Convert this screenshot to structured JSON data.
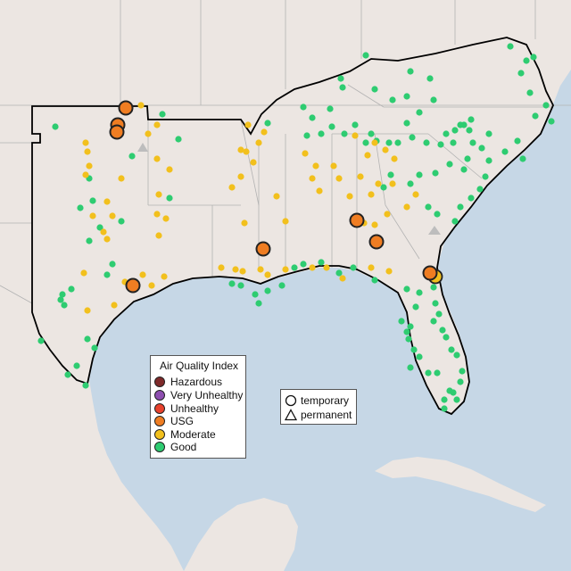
{
  "legend": {
    "title": "Air Quality Index",
    "items": [
      {
        "label": "Hazardous",
        "color": "#7e2a2a"
      },
      {
        "label": "Very Unhealthy",
        "color": "#8e4fb0"
      },
      {
        "label": "Unhealthy",
        "color": "#e8412c"
      },
      {
        "label": "USG",
        "color": "#ef7d22"
      },
      {
        "label": "Moderate",
        "color": "#f2c01d"
      },
      {
        "label": "Good",
        "color": "#2ecc71"
      }
    ]
  },
  "shape_legend": {
    "items": [
      {
        "label": "temporary",
        "shape": "circle-icon"
      },
      {
        "label": "permanent",
        "shape": "triangle-icon"
      }
    ]
  },
  "colors": {
    "ocean": "#c6d7e6",
    "land": "#ece6e2",
    "border": "#a9a9a9",
    "outline": "#000000",
    "usg": "#ef7d22",
    "moderate": "#f2c01d",
    "good": "#2ecc71"
  }
}
